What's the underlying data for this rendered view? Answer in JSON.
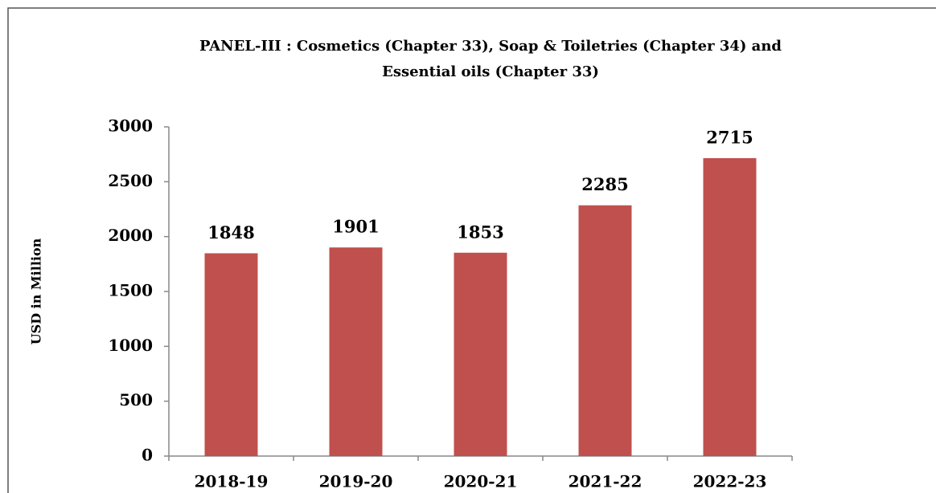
{
  "chart_data": {
    "type": "bar",
    "title": [
      "PANEL-III :  Cosmetics (Chapter 33),  Soap & Toiletries (Chapter 34)  and",
      "Essential oils (Chapter 33)"
    ],
    "y_label": "USD in Million",
    "categories": [
      "2018-19",
      "2019-20",
      "2020-21",
      "2021-22",
      "2022-23"
    ],
    "values": [
      1848,
      1901,
      1853,
      2285,
      2715
    ],
    "color": "#c0504d",
    "ylim": [
      0,
      3000
    ],
    "yticks": [
      0,
      500,
      1000,
      1500,
      2000,
      2500,
      3000
    ],
    "grid": false
  }
}
